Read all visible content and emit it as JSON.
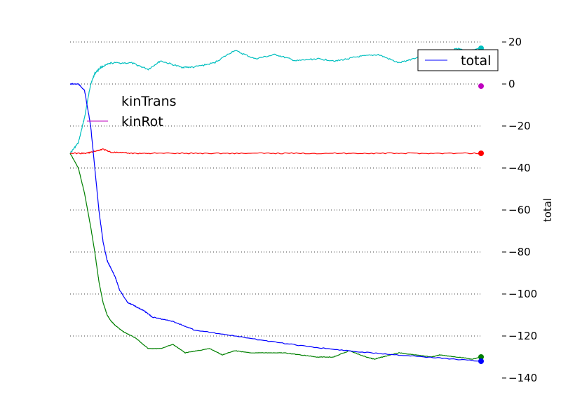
{
  "chart_data": {
    "type": "line",
    "ylabel": "total",
    "ylim": [
      -140,
      20
    ],
    "yticks": [
      20,
      0,
      -20,
      -40,
      -60,
      -80,
      -100,
      -120,
      -140
    ],
    "ytick_labels": [
      "20",
      "0",
      "−20",
      "−40",
      "−60",
      "−80",
      "−100",
      "−120",
      "−140"
    ],
    "xlim": [
      0,
      1
    ],
    "grid": "horizontal-dotted",
    "legend_placement": "top-right",
    "legend": [
      {
        "name": "total",
        "color": "#0000ff"
      }
    ],
    "floating_labels": [
      {
        "text": "kinTrans",
        "color": "#00bfbf"
      },
      {
        "text": "kinRot",
        "color": "#bf00bf"
      }
    ],
    "series": [
      {
        "name": "total",
        "color": "#0000ff",
        "x": [
          0,
          0.02,
          0.035,
          0.05,
          0.06,
          0.07,
          0.08,
          0.09,
          0.1,
          0.11,
          0.12,
          0.14,
          0.16,
          0.18,
          0.2,
          0.25,
          0.3,
          0.4,
          0.5,
          0.6,
          0.7,
          0.8,
          0.9,
          1.0
        ],
        "y": [
          0,
          0,
          -3,
          -20,
          -40,
          -60,
          -75,
          -84,
          -88,
          -92,
          -98,
          -104,
          -106,
          -108,
          -111,
          -113,
          -117,
          -120,
          -123,
          -125.5,
          -127.5,
          -129,
          -130.5,
          -132
        ]
      },
      {
        "name": "kinTrans",
        "color": "#00bfbf",
        "x": [
          0,
          0.02,
          0.035,
          0.05,
          0.06,
          0.075,
          0.1,
          0.15,
          0.19,
          0.22,
          0.27,
          0.3,
          0.35,
          0.4,
          0.45,
          0.5,
          0.55,
          0.6,
          0.65,
          0.7,
          0.75,
          0.8,
          0.85,
          0.88,
          0.9,
          0.92,
          0.94,
          0.96,
          0.98,
          1.0
        ],
        "y": [
          -33,
          -28,
          -16,
          0,
          5,
          8,
          10,
          10,
          7,
          11,
          8,
          8,
          10,
          16,
          12,
          14,
          11,
          12,
          11,
          13,
          14,
          10,
          13,
          15,
          14,
          15,
          17,
          16,
          16,
          17
        ]
      },
      {
        "name": "kinRot",
        "color": "#bf00bf",
        "x": [
          1.0
        ],
        "y": [
          -1
        ]
      },
      {
        "name": "red",
        "color": "#ff0000",
        "x": [
          0,
          0.04,
          0.06,
          0.08,
          0.1,
          0.15,
          0.2,
          0.3,
          0.4,
          0.5,
          0.6,
          0.7,
          0.8,
          0.9,
          1.0
        ],
        "y": [
          -33,
          -33,
          -32,
          -31,
          -32.5,
          -33,
          -33,
          -33,
          -33,
          -33,
          -33,
          -33,
          -33,
          -33,
          -33
        ]
      },
      {
        "name": "green",
        "color": "#008000",
        "x": [
          0,
          0.02,
          0.035,
          0.05,
          0.06,
          0.07,
          0.08,
          0.09,
          0.1,
          0.11,
          0.13,
          0.16,
          0.19,
          0.22,
          0.25,
          0.28,
          0.31,
          0.34,
          0.37,
          0.4,
          0.44,
          0.48,
          0.52,
          0.56,
          0.6,
          0.64,
          0.68,
          0.72,
          0.74,
          0.76,
          0.8,
          0.84,
          0.88,
          0.9,
          0.94,
          0.98,
          1.0
        ],
        "y": [
          -33,
          -40,
          -52,
          -68,
          -80,
          -94,
          -104,
          -110,
          -113,
          -115,
          -118,
          -121,
          -126,
          -126,
          -124,
          -128,
          -127,
          -126,
          -129,
          -127,
          -128,
          -128,
          -128,
          -129,
          -130,
          -130,
          -127,
          -130,
          -131,
          -130,
          -128,
          -129,
          -130,
          -129,
          -130,
          -131,
          -130
        ]
      }
    ]
  }
}
